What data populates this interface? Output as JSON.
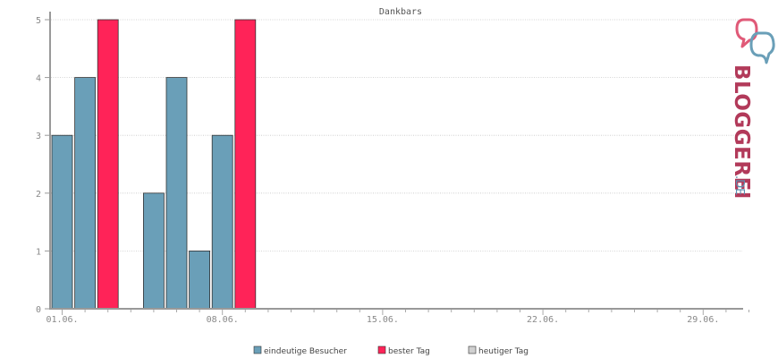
{
  "chart_data": {
    "type": "bar",
    "title": "Dankbars",
    "x_tick_labels": [
      "01.06.",
      "08.06.",
      "15.06.",
      "22.06.",
      "29.06."
    ],
    "y_ticks": [
      0,
      1,
      2,
      3,
      4,
      5
    ],
    "ylim": [
      0,
      5
    ],
    "grid": true,
    "legend_position": "bottom-center",
    "series": [
      {
        "name": "eindeutige Besucher",
        "color": "#6a9fb8",
        "points": [
          {
            "day": 1,
            "value": 3
          },
          {
            "day": 2,
            "value": 4
          },
          {
            "day": 5,
            "value": 2
          },
          {
            "day": 6,
            "value": 4
          },
          {
            "day": 7,
            "value": 1
          },
          {
            "day": 8,
            "value": 3
          }
        ]
      },
      {
        "name": "bester Tag",
        "color": "#ff2358",
        "points": [
          {
            "day": 3,
            "value": 5
          },
          {
            "day": 9,
            "value": 5
          }
        ]
      },
      {
        "name": "heutiger Tag",
        "color": "#d0d0d0",
        "points": []
      }
    ]
  },
  "logo": {
    "text": "BLOGGEREI",
    "suffix": ".DE",
    "colors": {
      "primary": "#b23a5a",
      "secondary": "#5a8fb0"
    }
  }
}
